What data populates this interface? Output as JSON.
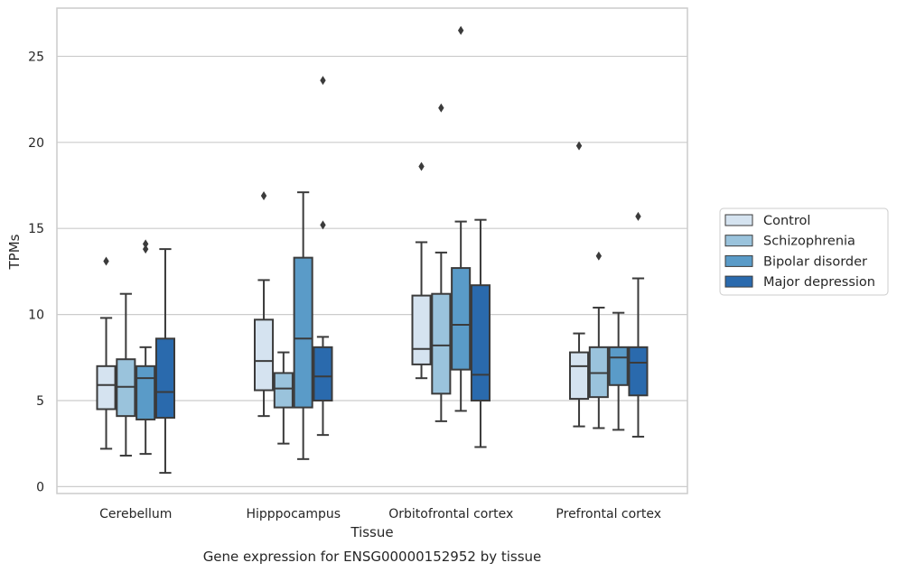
{
  "chart_data": {
    "type": "box",
    "title": "Gene expression for ENSG00000152952 by tissue",
    "xlabel": "Tissue",
    "ylabel": "TPMs",
    "ylim": [
      -0.4,
      27.8
    ],
    "yticks": [
      0,
      5,
      10,
      15,
      20,
      25
    ],
    "grid": "horizontal",
    "legend_position": "right",
    "categories": [
      "Cerebellum",
      "Hipppocampus",
      "Orbitofrontal cortex",
      "Prefrontal cortex"
    ],
    "series": [
      {
        "name": "Control",
        "color": "#d5e3f0",
        "boxes": [
          {
            "whislo": 2.2,
            "q1": 4.5,
            "med": 5.9,
            "q3": 7.0,
            "whishi": 9.8,
            "fliers": [
              13.1
            ]
          },
          {
            "whislo": 4.1,
            "q1": 5.6,
            "med": 7.3,
            "q3": 9.7,
            "whishi": 12.0,
            "fliers": [
              16.9
            ]
          },
          {
            "whislo": 6.3,
            "q1": 7.1,
            "med": 8.0,
            "q3": 11.1,
            "whishi": 14.2,
            "fliers": [
              18.6
            ]
          },
          {
            "whislo": 3.5,
            "q1": 5.1,
            "med": 7.0,
            "q3": 7.8,
            "whishi": 8.9,
            "fliers": [
              19.8
            ]
          }
        ]
      },
      {
        "name": "Schizophrenia",
        "color": "#9ac3dc",
        "boxes": [
          {
            "whislo": 1.8,
            "q1": 4.1,
            "med": 5.8,
            "q3": 7.4,
            "whishi": 11.2,
            "fliers": []
          },
          {
            "whislo": 2.5,
            "q1": 4.6,
            "med": 5.7,
            "q3": 6.6,
            "whishi": 7.8,
            "fliers": []
          },
          {
            "whislo": 3.8,
            "q1": 5.4,
            "med": 8.2,
            "q3": 11.2,
            "whishi": 13.6,
            "fliers": [
              22.0
            ]
          },
          {
            "whislo": 3.4,
            "q1": 5.2,
            "med": 6.6,
            "q3": 8.1,
            "whishi": 10.4,
            "fliers": [
              13.4
            ]
          }
        ]
      },
      {
        "name": "Bipolar disorder",
        "color": "#5a9bc8",
        "boxes": [
          {
            "whislo": 1.9,
            "q1": 3.9,
            "med": 6.3,
            "q3": 7.0,
            "whishi": 8.1,
            "fliers": [
              13.8,
              14.1
            ]
          },
          {
            "whislo": 1.6,
            "q1": 4.6,
            "med": 8.6,
            "q3": 13.3,
            "whishi": 17.1,
            "fliers": []
          },
          {
            "whislo": 4.4,
            "q1": 6.8,
            "med": 9.4,
            "q3": 12.7,
            "whishi": 15.4,
            "fliers": [
              26.5
            ]
          },
          {
            "whislo": 3.3,
            "q1": 5.9,
            "med": 7.5,
            "q3": 8.1,
            "whishi": 10.1,
            "fliers": []
          }
        ]
      },
      {
        "name": "Major depression",
        "color": "#2a6aad",
        "boxes": [
          {
            "whislo": 0.8,
            "q1": 4.0,
            "med": 5.5,
            "q3": 8.6,
            "whishi": 13.8,
            "fliers": []
          },
          {
            "whislo": 3.0,
            "q1": 5.0,
            "med": 6.4,
            "q3": 8.1,
            "whishi": 8.7,
            "fliers": [
              15.2,
              23.6
            ]
          },
          {
            "whislo": 2.3,
            "q1": 5.0,
            "med": 6.5,
            "q3": 11.7,
            "whishi": 15.5,
            "fliers": []
          },
          {
            "whislo": 2.9,
            "q1": 5.3,
            "med": 7.2,
            "q3": 8.1,
            "whishi": 12.1,
            "fliers": [
              15.7
            ]
          }
        ]
      }
    ]
  }
}
